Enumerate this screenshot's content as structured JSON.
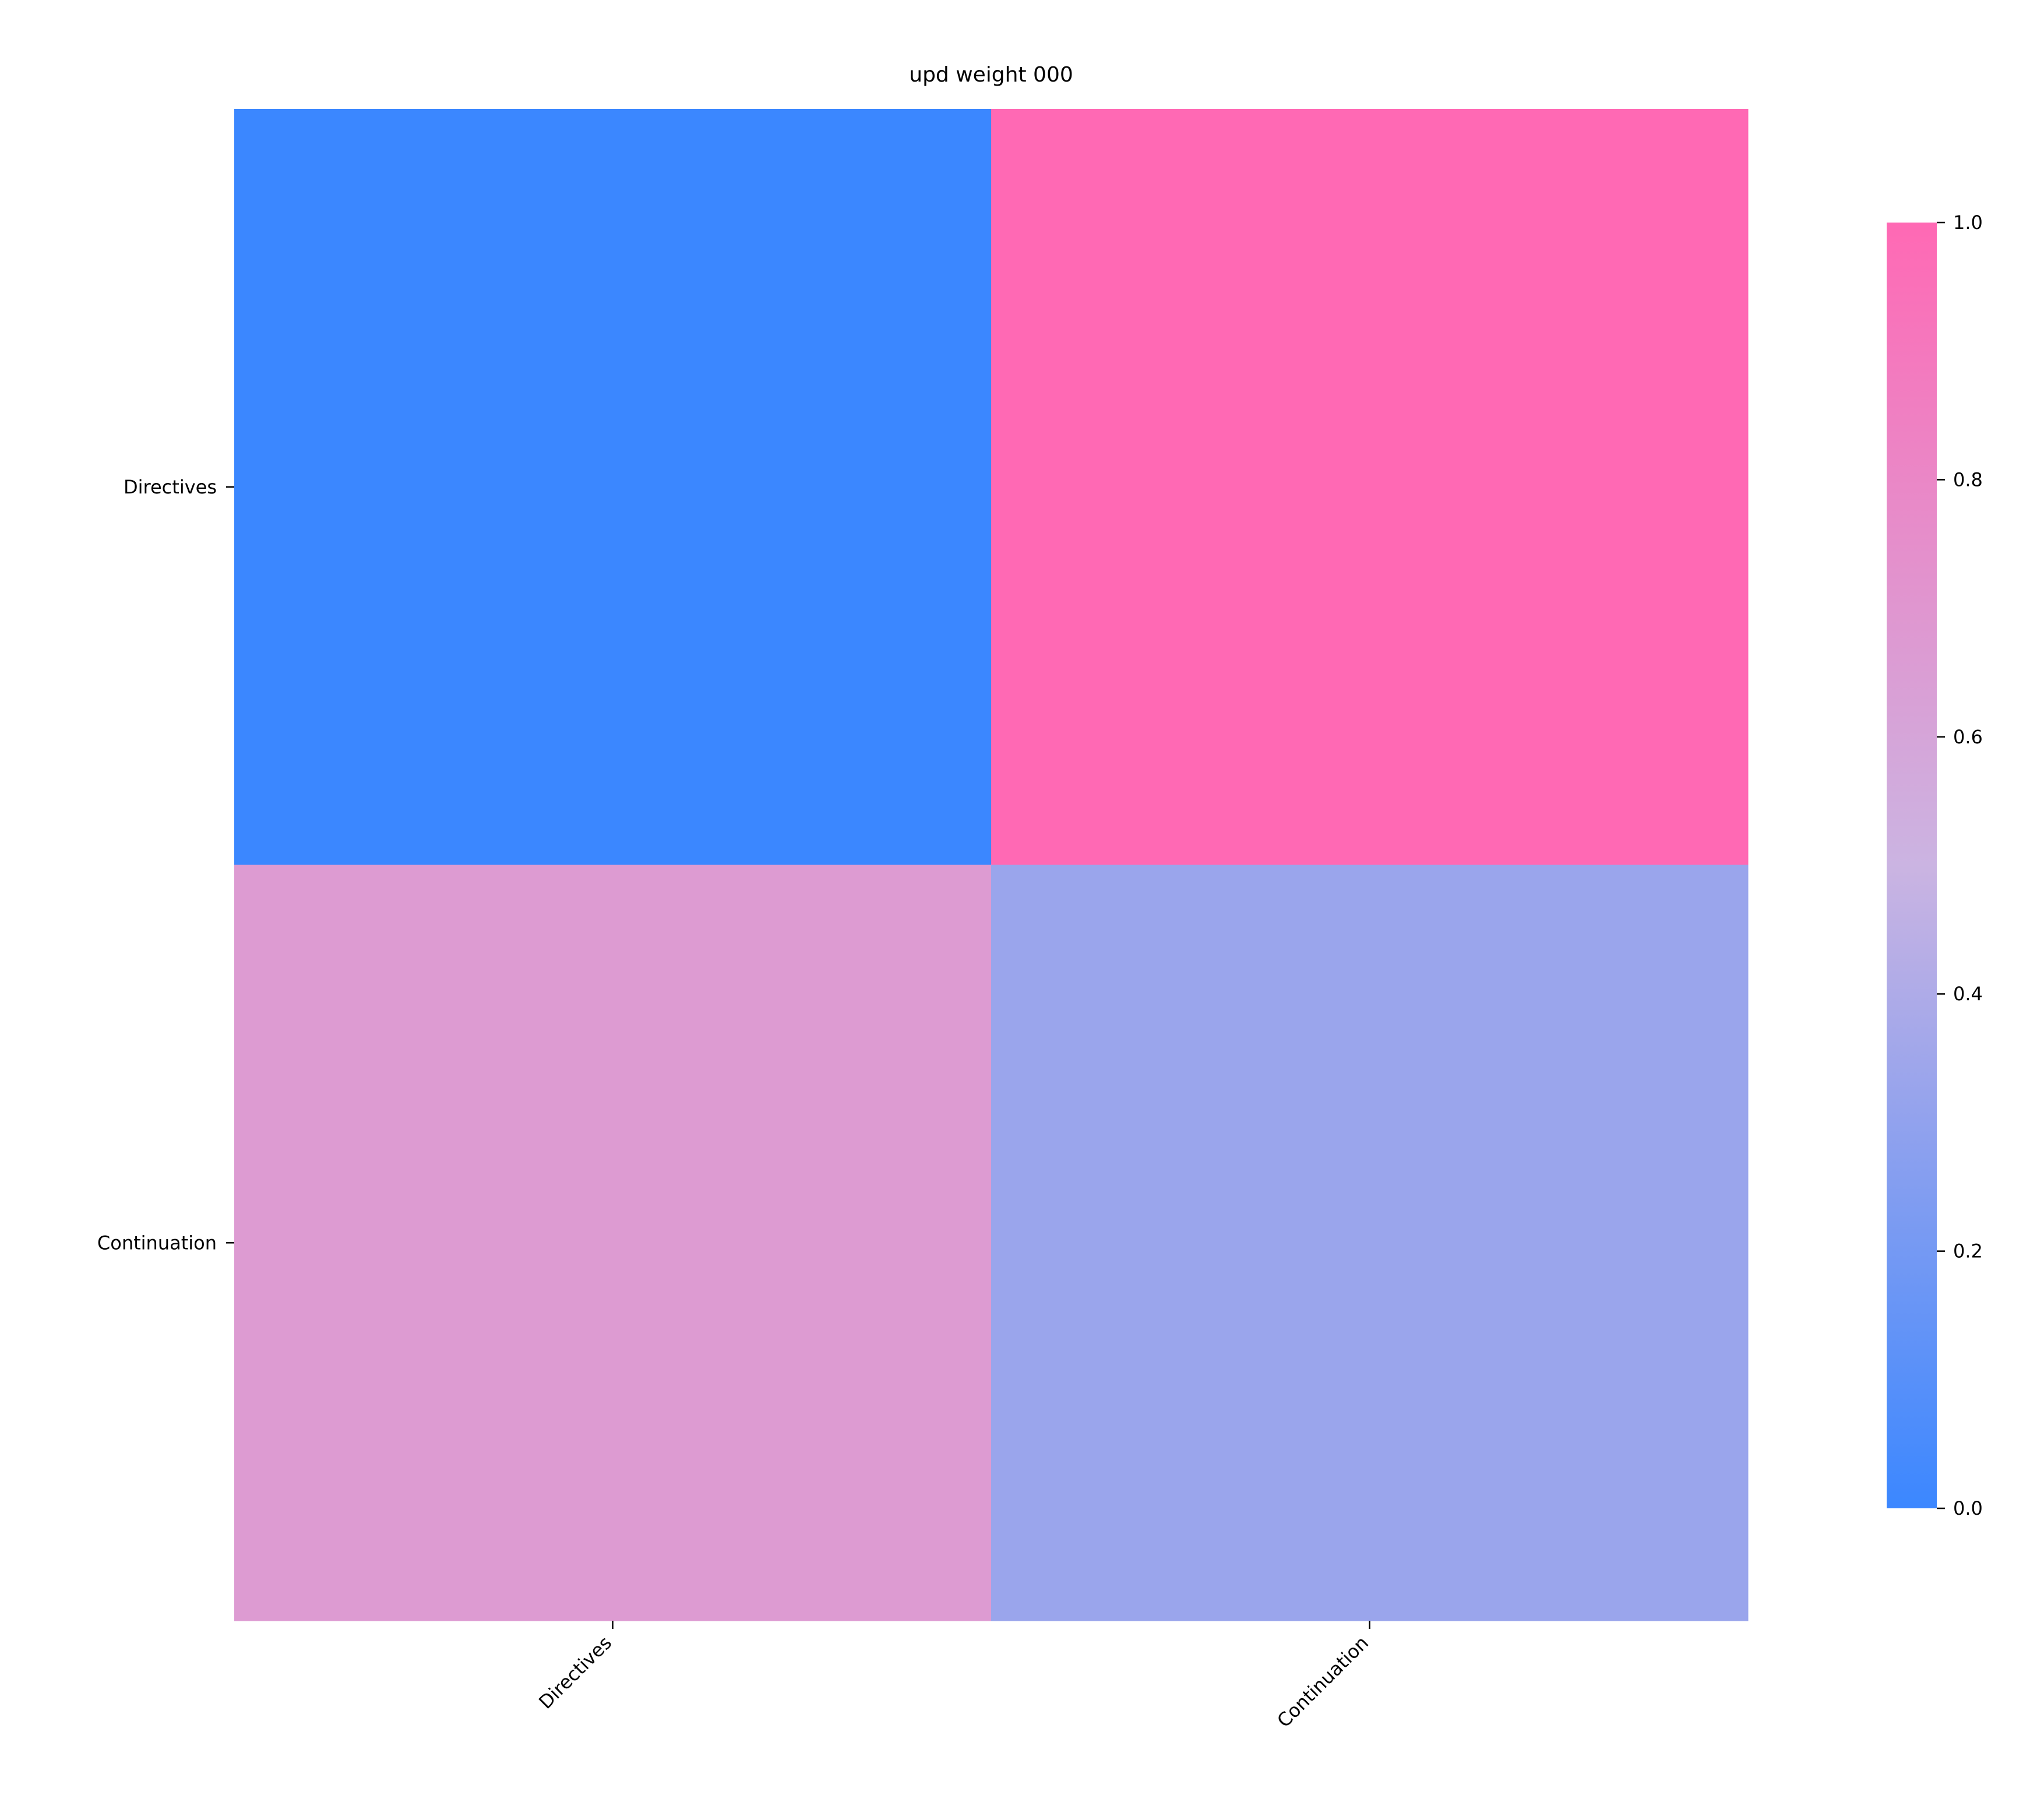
{
  "chart_data": {
    "type": "heatmap",
    "title": "upd weight 000",
    "rows": [
      "Directives",
      "Continuation"
    ],
    "columns": [
      "Directives",
      "Continuation"
    ],
    "values": [
      [
        0.0,
        1.0
      ],
      [
        0.67,
        0.33
      ]
    ],
    "colorbar": {
      "range": [
        0.0,
        1.0
      ],
      "ticks": [
        "0.0",
        "0.2",
        "0.4",
        "0.6",
        "0.8",
        "1.0"
      ],
      "colors": [
        "#3b87ff",
        "#cbb4e2",
        "#ff69b4"
      ]
    },
    "xlabel": "",
    "ylabel": ""
  }
}
